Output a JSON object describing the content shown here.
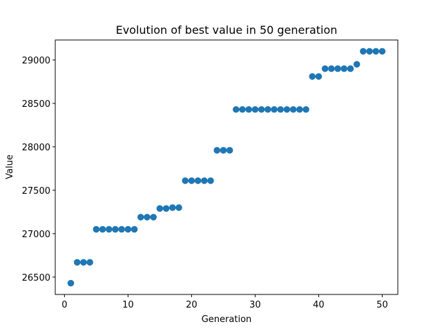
{
  "chart_data": {
    "type": "scatter",
    "title": "Evolution of best value in 50 generation",
    "xlabel": "Generation",
    "ylabel": "Value",
    "xlim": [
      -1.45,
      52.45
    ],
    "ylim": [
      26300,
      29230
    ],
    "xticks": [
      0,
      10,
      20,
      30,
      40,
      50
    ],
    "yticks": [
      26500,
      27000,
      27500,
      28000,
      28500,
      29000
    ],
    "marker_color": "#1f77b4",
    "grid": false,
    "series": [
      {
        "x": [
          1,
          2,
          3,
          4,
          5,
          6,
          7,
          8,
          9,
          10,
          11,
          12,
          13,
          14,
          15,
          16,
          17,
          18,
          19,
          20,
          21,
          22,
          23,
          24,
          25,
          26,
          27,
          28,
          29,
          30,
          31,
          32,
          33,
          34,
          35,
          36,
          37,
          38,
          39,
          40,
          41,
          42,
          43,
          44,
          45,
          46,
          47,
          48,
          49,
          50
        ],
        "y": [
          26430,
          26670,
          26670,
          26670,
          27050,
          27050,
          27050,
          27050,
          27050,
          27050,
          27050,
          27190,
          27190,
          27190,
          27290,
          27290,
          27300,
          27300,
          27610,
          27610,
          27610,
          27610,
          27610,
          27960,
          27960,
          27960,
          28430,
          28430,
          28430,
          28430,
          28430,
          28430,
          28430,
          28430,
          28430,
          28430,
          28430,
          28430,
          28810,
          28810,
          28900,
          28900,
          28900,
          28900,
          28900,
          28950,
          29100,
          29100,
          29100,
          29100
        ]
      }
    ]
  }
}
